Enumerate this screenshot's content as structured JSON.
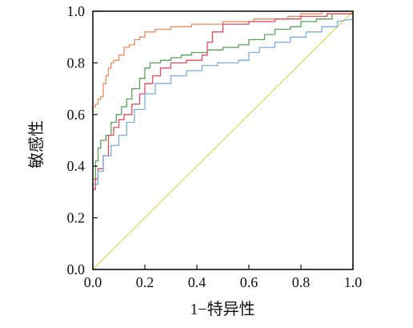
{
  "chart_data": {
    "type": "line",
    "xlabel": "1−特异性",
    "ylabel": "敏感性",
    "xlim": [
      0.0,
      1.0
    ],
    "ylim": [
      0.0,
      1.0
    ],
    "x_ticks": [
      "0.0",
      "0.2",
      "0.4",
      "0.6",
      "0.8",
      "1.0"
    ],
    "y_ticks": [
      "0.0",
      "0.2",
      "0.4",
      "0.6",
      "0.8",
      "1.0"
    ],
    "grid": false,
    "legend": "none",
    "reference_line": {
      "x": [
        0.0,
        1.0
      ],
      "y": [
        0.0,
        1.0
      ],
      "color": "#d8dc55"
    },
    "series": [
      {
        "color": "#f08a5d",
        "x": [
          0.0,
          0.0,
          0.01,
          0.01,
          0.02,
          0.02,
          0.03,
          0.03,
          0.04,
          0.04,
          0.05,
          0.05,
          0.06,
          0.06,
          0.07,
          0.07,
          0.08,
          0.08,
          0.1,
          0.1,
          0.12,
          0.12,
          0.14,
          0.14,
          0.16,
          0.16,
          0.18,
          0.18,
          0.2,
          0.2,
          0.24,
          0.24,
          0.3,
          0.3,
          0.38,
          0.38,
          0.5,
          0.5,
          0.62,
          0.62,
          0.75,
          0.75,
          0.8,
          0.8,
          0.88,
          0.88,
          0.95,
          0.95,
          1.0
        ],
        "y": [
          0.62,
          0.63,
          0.63,
          0.64,
          0.64,
          0.66,
          0.66,
          0.67,
          0.67,
          0.72,
          0.72,
          0.75,
          0.75,
          0.78,
          0.78,
          0.8,
          0.8,
          0.81,
          0.81,
          0.83,
          0.83,
          0.86,
          0.86,
          0.87,
          0.87,
          0.89,
          0.89,
          0.9,
          0.9,
          0.92,
          0.92,
          0.93,
          0.93,
          0.94,
          0.94,
          0.95,
          0.95,
          0.96,
          0.96,
          0.97,
          0.97,
          0.98,
          0.98,
          0.99,
          0.99,
          1.0,
          1.0,
          1.0,
          1.0
        ]
      },
      {
        "color": "#5aa05a",
        "x": [
          0.0,
          0.0,
          0.01,
          0.01,
          0.02,
          0.02,
          0.03,
          0.03,
          0.05,
          0.05,
          0.07,
          0.07,
          0.09,
          0.09,
          0.11,
          0.11,
          0.13,
          0.13,
          0.15,
          0.15,
          0.18,
          0.18,
          0.2,
          0.2,
          0.22,
          0.22,
          0.26,
          0.26,
          0.3,
          0.3,
          0.34,
          0.34,
          0.38,
          0.38,
          0.44,
          0.44,
          0.5,
          0.5,
          0.56,
          0.56,
          0.6,
          0.6,
          0.66,
          0.66,
          0.7,
          0.7,
          0.76,
          0.76,
          0.8,
          0.8,
          0.86,
          0.86,
          0.92,
          0.92,
          1.0,
          1.0
        ],
        "y": [
          0.14,
          0.35,
          0.35,
          0.42,
          0.42,
          0.47,
          0.47,
          0.5,
          0.5,
          0.52,
          0.52,
          0.57,
          0.57,
          0.6,
          0.6,
          0.63,
          0.63,
          0.66,
          0.66,
          0.7,
          0.7,
          0.74,
          0.74,
          0.78,
          0.78,
          0.8,
          0.8,
          0.81,
          0.81,
          0.82,
          0.82,
          0.83,
          0.83,
          0.84,
          0.84,
          0.85,
          0.85,
          0.86,
          0.86,
          0.87,
          0.87,
          0.89,
          0.89,
          0.91,
          0.91,
          0.93,
          0.93,
          0.94,
          0.94,
          0.96,
          0.96,
          0.97,
          0.97,
          0.99,
          0.99,
          1.0
        ]
      },
      {
        "color": "#e24a5a",
        "x": [
          0.0,
          0.0,
          0.01,
          0.01,
          0.02,
          0.02,
          0.04,
          0.04,
          0.06,
          0.06,
          0.08,
          0.08,
          0.1,
          0.1,
          0.12,
          0.12,
          0.15,
          0.15,
          0.18,
          0.18,
          0.2,
          0.2,
          0.23,
          0.23,
          0.26,
          0.26,
          0.3,
          0.3,
          0.36,
          0.36,
          0.42,
          0.42,
          0.44,
          0.44,
          0.46,
          0.46,
          0.5,
          0.5,
          0.6,
          0.6,
          0.7,
          0.7,
          0.8,
          0.8,
          0.9,
          0.9,
          1.0
        ],
        "y": [
          0.23,
          0.31,
          0.31,
          0.35,
          0.35,
          0.39,
          0.39,
          0.44,
          0.44,
          0.52,
          0.52,
          0.55,
          0.55,
          0.58,
          0.58,
          0.6,
          0.6,
          0.64,
          0.64,
          0.68,
          0.68,
          0.72,
          0.72,
          0.75,
          0.75,
          0.78,
          0.78,
          0.8,
          0.8,
          0.81,
          0.81,
          0.83,
          0.83,
          0.88,
          0.88,
          0.92,
          0.92,
          0.95,
          0.95,
          0.96,
          0.96,
          0.97,
          0.97,
          0.98,
          0.98,
          0.99,
          0.99
        ]
      },
      {
        "color": "#7aaedc",
        "x": [
          0.0,
          0.0,
          0.02,
          0.02,
          0.04,
          0.04,
          0.07,
          0.07,
          0.1,
          0.1,
          0.13,
          0.13,
          0.16,
          0.16,
          0.2,
          0.2,
          0.24,
          0.24,
          0.3,
          0.3,
          0.36,
          0.36,
          0.42,
          0.42,
          0.48,
          0.48,
          0.56,
          0.56,
          0.6,
          0.6,
          0.64,
          0.64,
          0.7,
          0.7,
          0.76,
          0.76,
          0.82,
          0.82,
          0.88,
          0.88,
          0.94,
          0.94,
          1.0
        ],
        "y": [
          0.18,
          0.33,
          0.33,
          0.38,
          0.38,
          0.44,
          0.44,
          0.48,
          0.48,
          0.52,
          0.52,
          0.57,
          0.57,
          0.62,
          0.62,
          0.68,
          0.68,
          0.72,
          0.72,
          0.75,
          0.75,
          0.77,
          0.77,
          0.79,
          0.79,
          0.8,
          0.8,
          0.81,
          0.81,
          0.84,
          0.84,
          0.86,
          0.86,
          0.88,
          0.88,
          0.9,
          0.9,
          0.92,
          0.92,
          0.94,
          0.94,
          0.96,
          0.97
        ]
      }
    ]
  }
}
